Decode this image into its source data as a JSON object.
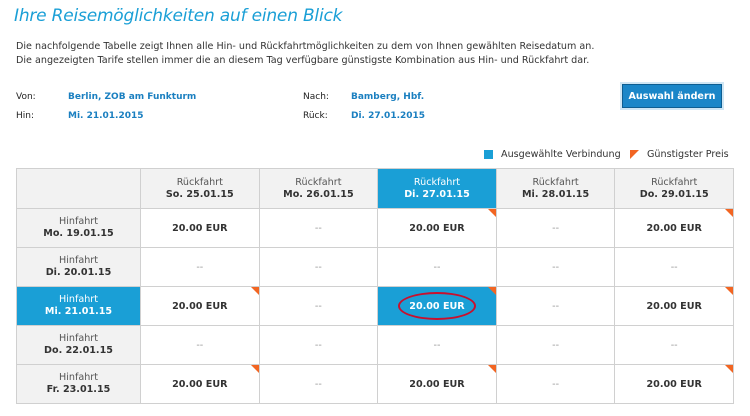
{
  "title": "Ihre Reisemöglichkeiten auf einen Blick",
  "intro": {
    "line1": "Die nachfolgende Tabelle zeigt Ihnen alle Hin- und Rückfahrtmöglichkeiten zu dem von Ihnen gewählten Reisedatum an.",
    "line2": "Die angezeigten Tarife stellen immer die an diesem Tag verfügbare günstigste Kombination aus Hin- und Rückfahrt dar."
  },
  "trip": {
    "from_label": "Von:",
    "from_value": "Berlin, ZOB am Funkturm",
    "to_label": "Nach:",
    "to_value": "Bamberg, Hbf.",
    "outbound_label": "Hin:",
    "outbound_value": "Mi. 21.01.2015",
    "return_label": "Rück:",
    "return_value": "Di. 27.01.2015"
  },
  "change_button": "Auswahl ändern",
  "legend": {
    "selected": "Ausgewählte Verbindung",
    "cheapest": "Günstigster Preis"
  },
  "colors": {
    "accent": "#1a9fd6",
    "cheapest_flag": "#f26522",
    "highlight_circle": "#c8102e"
  },
  "columns": [
    {
      "label": "Rückfahrt",
      "date": "So. 25.01.15"
    },
    {
      "label": "Rückfahrt",
      "date": "Mo. 26.01.15"
    },
    {
      "label": "Rückfahrt",
      "date": "Di. 27.01.15"
    },
    {
      "label": "Rückfahrt",
      "date": "Mi. 28.01.15"
    },
    {
      "label": "Rückfahrt",
      "date": "Do. 29.01.15"
    }
  ],
  "rows": [
    {
      "label": "Hinfahrt",
      "date": "Mo. 19.01.15",
      "cells": [
        "20.00 EUR",
        "--",
        "20.00 EUR",
        "--",
        "20.00 EUR"
      ]
    },
    {
      "label": "Hinfahrt",
      "date": "Di. 20.01.15",
      "cells": [
        "--",
        "--",
        "--",
        "--",
        "--"
      ]
    },
    {
      "label": "Hinfahrt",
      "date": "Mi. 21.01.15",
      "cells": [
        "20.00 EUR",
        "--",
        "20.00 EUR",
        "--",
        "20.00 EUR"
      ]
    },
    {
      "label": "Hinfahrt",
      "date": "Do. 22.01.15",
      "cells": [
        "--",
        "--",
        "--",
        "--",
        "--"
      ]
    },
    {
      "label": "Hinfahrt",
      "date": "Fr. 23.01.15",
      "cells": [
        "20.00 EUR",
        "--",
        "20.00 EUR",
        "--",
        "20.00 EUR"
      ]
    }
  ],
  "selected": {
    "row": 2,
    "column": 2
  }
}
